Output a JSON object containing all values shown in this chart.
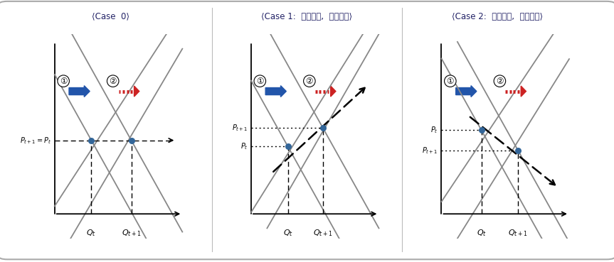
{
  "title0": "⟨Case  0⟩",
  "title1": "⟨Case 1:  소비증가,  가격상승⟩",
  "title2": "⟨Case 2:  소비증가,  가격하락⟩",
  "bg_color": "#ffffff",
  "border_color": "#aaaaaa",
  "line_color": "#888888",
  "pt_color": "#336699",
  "arrow_blue": "#2255aa",
  "arrow_red": "#cc2222",
  "black": "#111111",
  "title_color": "#222266"
}
